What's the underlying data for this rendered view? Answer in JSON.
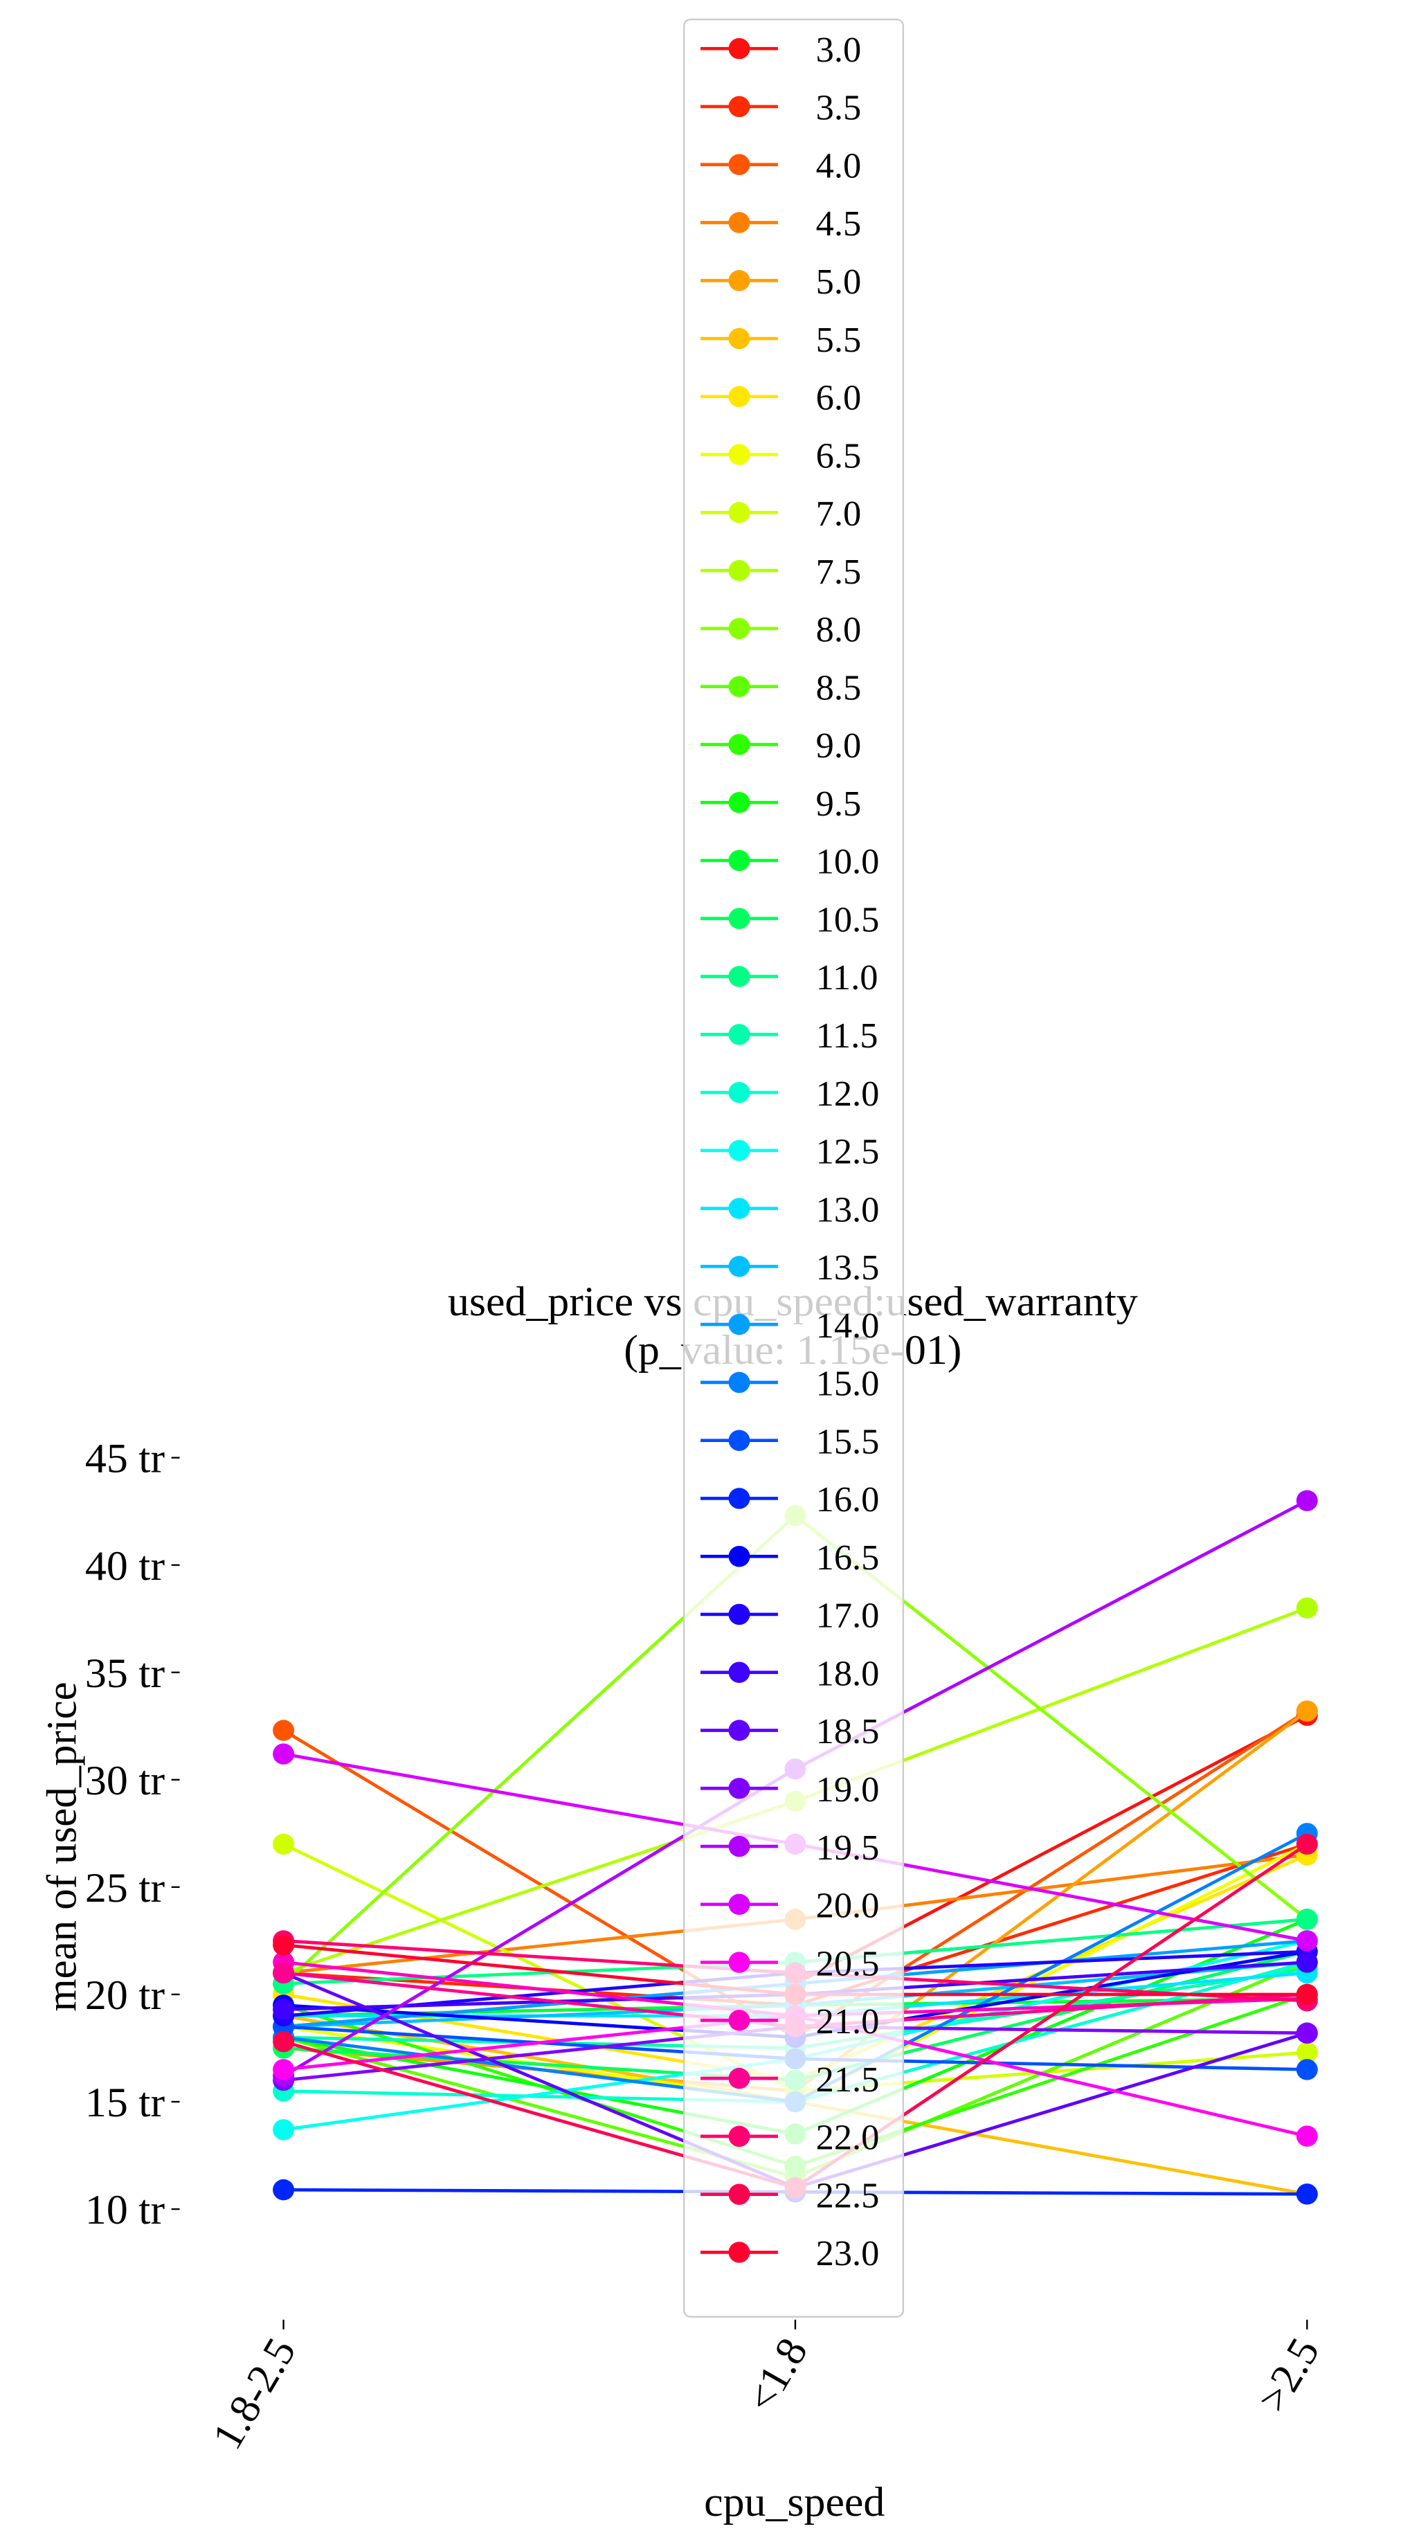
{
  "chart_data": {
    "type": "line",
    "title": "used_price vs cpu_speed:used_warranty",
    "subtitle": "(p_value: 1.15e-01)",
    "x_label": "cpu_speed",
    "y_label": "mean of used_price",
    "categories": [
      "1.8-2.5",
      "<1.8",
      ">2.5"
    ],
    "ylim": [
      5,
      46.5
    ],
    "yticks": [
      {
        "value": 10,
        "label": "10 tr"
      },
      {
        "value": 15,
        "label": "15 tr"
      },
      {
        "value": 20,
        "label": "20 tr"
      },
      {
        "value": 25,
        "label": "25 tr"
      },
      {
        "value": 30,
        "label": "30 tr"
      },
      {
        "value": 35,
        "label": "35 tr"
      },
      {
        "value": 40,
        "label": "40 tr"
      },
      {
        "value": 45,
        "label": "45 tr"
      }
    ],
    "legend_position": "upper center",
    "series": [
      {
        "name": "3.0",
        "color": "#ff1010",
        "values": [
          18.5,
          20.5,
          33.0
        ]
      },
      {
        "name": "3.5",
        "color": "#ff2a00",
        "values": [
          21.0,
          19.5,
          27.0
        ]
      },
      {
        "name": "4.0",
        "color": "#ff5500",
        "values": [
          32.3,
          18.0,
          33.2
        ]
      },
      {
        "name": "4.5",
        "color": "#ff7f00",
        "values": [
          21.0,
          23.5,
          26.5
        ]
      },
      {
        "name": "5.0",
        "color": "#ffa000",
        "values": [
          17.5,
          15.5,
          33.2
        ]
      },
      {
        "name": "5.5",
        "color": "#ffc000",
        "values": [
          19.0,
          15.0,
          10.7
        ]
      },
      {
        "name": "6.0",
        "color": "#ffe500",
        "values": [
          20.0,
          16.0,
          26.5
        ]
      },
      {
        "name": "6.5",
        "color": "#f0ff00",
        "values": [
          18.5,
          15.0,
          27.0
        ]
      },
      {
        "name": "7.0",
        "color": "#d0ff00",
        "values": [
          27.0,
          15.5,
          17.3
        ]
      },
      {
        "name": "7.5",
        "color": "#b0ff00",
        "values": [
          21.0,
          29.0,
          38.0
        ]
      },
      {
        "name": "8.0",
        "color": "#8aff00",
        "values": [
          20.5,
          42.3,
          23.5
        ]
      },
      {
        "name": "8.5",
        "color": "#60ff00",
        "values": [
          18.0,
          11.5,
          21.5
        ]
      },
      {
        "name": "9.0",
        "color": "#30ff00",
        "values": [
          19.5,
          12.0,
          20.0
        ]
      },
      {
        "name": "9.5",
        "color": "#10ff10",
        "values": [
          18.0,
          13.5,
          23.5
        ]
      },
      {
        "name": "10.0",
        "color": "#00ff30",
        "values": [
          19.0,
          19.5,
          19.8
        ]
      },
      {
        "name": "10.5",
        "color": "#00ff60",
        "values": [
          17.5,
          16.0,
          22.0
        ]
      },
      {
        "name": "11.0",
        "color": "#00ff85",
        "values": [
          20.5,
          21.5,
          23.5
        ]
      },
      {
        "name": "11.5",
        "color": "#00ffaa",
        "values": [
          18.0,
          17.5,
          21.2
        ]
      },
      {
        "name": "12.0",
        "color": "#00ffd0",
        "values": [
          15.5,
          15.0,
          21.5
        ]
      },
      {
        "name": "12.5",
        "color": "#00fff0",
        "values": [
          13.7,
          17.0,
          22.5
        ]
      },
      {
        "name": "13.0",
        "color": "#00e5ff",
        "values": [
          19.0,
          19.0,
          21.0
        ]
      },
      {
        "name": "13.5",
        "color": "#00c0ff",
        "values": [
          18.5,
          19.5,
          21.5
        ]
      },
      {
        "name": "14.0",
        "color": "#00a0ff",
        "values": [
          18.5,
          20.5,
          22.5
        ]
      },
      {
        "name": "15.0",
        "color": "#0080ff",
        "values": [
          18.0,
          15.0,
          27.5
        ]
      },
      {
        "name": "15.5",
        "color": "#0050ff",
        "values": [
          18.5,
          17.0,
          16.5
        ]
      },
      {
        "name": "16.0",
        "color": "#0025ff",
        "values": [
          10.9,
          10.8,
          10.7
        ]
      },
      {
        "name": "16.5",
        "color": "#0000ff",
        "values": [
          19.5,
          18.0,
          22.0
        ]
      },
      {
        "name": "17.0",
        "color": "#2000ff",
        "values": [
          19.0,
          21.0,
          22.0
        ]
      },
      {
        "name": "18.0",
        "color": "#4000ff",
        "values": [
          19.3,
          20.0,
          21.5
        ]
      },
      {
        "name": "18.5",
        "color": "#6000ff",
        "values": [
          21.0,
          11.0,
          18.2
        ]
      },
      {
        "name": "19.0",
        "color": "#8000ff",
        "values": [
          16.0,
          18.5,
          18.2
        ]
      },
      {
        "name": "19.5",
        "color": "#b000ff",
        "values": [
          16.2,
          30.5,
          43.0
        ]
      },
      {
        "name": "20.0",
        "color": "#d800ff",
        "values": [
          31.2,
          27.0,
          22.5
        ]
      },
      {
        "name": "20.5",
        "color": "#ff00f0",
        "values": [
          16.5,
          19.0,
          13.4
        ]
      },
      {
        "name": "21.0",
        "color": "#ff00c0",
        "values": [
          21.5,
          19.0,
          19.8
        ]
      },
      {
        "name": "21.5",
        "color": "#ff0090",
        "values": [
          21.0,
          18.5,
          20.0
        ]
      },
      {
        "name": "22.0",
        "color": "#ff0070",
        "values": [
          22.5,
          21.0,
          19.7
        ]
      },
      {
        "name": "22.5",
        "color": "#ff0050",
        "values": [
          17.8,
          11.0,
          27.0
        ]
      },
      {
        "name": "23.0",
        "color": "#ff0030",
        "values": [
          22.3,
          20.0,
          20.0
        ]
      }
    ]
  }
}
